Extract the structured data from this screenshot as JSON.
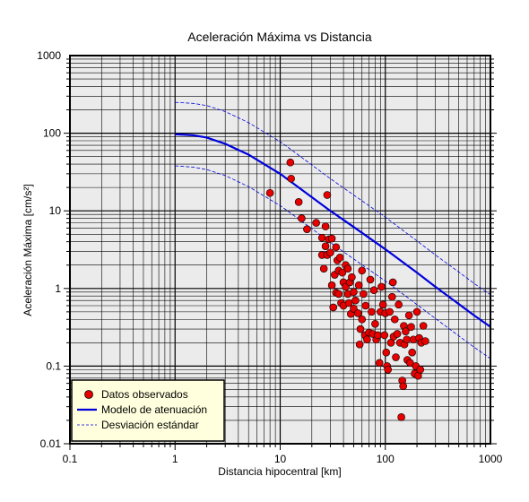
{
  "chart_data": {
    "type": "scatter",
    "title": "Aceleración Máxima vs Distancia",
    "xlabel": "Distancia hipocentral [km]",
    "ylabel": "Aceleración Máxima [cm/s²]",
    "xlim": [
      0.1,
      1000
    ],
    "ylim": [
      0.01,
      1000
    ],
    "xscale": "log",
    "yscale": "log",
    "grid": true,
    "legend_position": "bottom-left",
    "colors": {
      "plot_background": "#ebebeb",
      "grid": "#000000",
      "points": "#e60000",
      "model": "#0000dd",
      "legend_background": "#ffffdd"
    },
    "x_ticks": [
      {
        "value": 0.1,
        "label": "0.1"
      },
      {
        "value": 1,
        "label": "1"
      },
      {
        "value": 10,
        "label": "10"
      },
      {
        "value": 100,
        "label": "100"
      },
      {
        "value": 1000,
        "label": "1000"
      }
    ],
    "y_ticks": [
      {
        "value": 0.01,
        "label": "0.01"
      },
      {
        "value": 0.1,
        "label": "0.1"
      },
      {
        "value": 1,
        "label": "1"
      },
      {
        "value": 10,
        "label": "10"
      },
      {
        "value": 100,
        "label": "100"
      },
      {
        "value": 1000,
        "label": "1000"
      }
    ],
    "series": [
      {
        "name": "Datos observados",
        "type": "scatter",
        "points": [
          [
            8,
            17
          ],
          [
            12.5,
            42
          ],
          [
            12.7,
            26
          ],
          [
            15,
            13
          ],
          [
            16,
            8
          ],
          [
            18,
            5.8
          ],
          [
            22,
            7
          ],
          [
            25,
            4.5
          ],
          [
            25,
            2.7
          ],
          [
            26,
            1.8
          ],
          [
            27,
            6.3
          ],
          [
            27,
            3.5
          ],
          [
            28,
            16
          ],
          [
            28,
            2.7
          ],
          [
            29,
            4.3
          ],
          [
            30,
            2.9
          ],
          [
            31,
            4.4
          ],
          [
            31,
            1.1
          ],
          [
            32,
            0.57
          ],
          [
            33,
            1.5
          ],
          [
            34,
            3.4
          ],
          [
            34,
            0.88
          ],
          [
            35,
            2.3
          ],
          [
            36,
            0.85
          ],
          [
            36,
            1.7
          ],
          [
            37,
            2.5
          ],
          [
            38,
            0.65
          ],
          [
            39,
            1.6
          ],
          [
            40,
            1.2
          ],
          [
            40,
            0.6
          ],
          [
            42,
            2.0
          ],
          [
            42,
            1.05
          ],
          [
            44,
            1.8
          ],
          [
            44,
            0.85
          ],
          [
            45,
            0.65
          ],
          [
            46,
            1.2
          ],
          [
            47,
            0.47
          ],
          [
            48,
            1.4
          ],
          [
            50,
            0.9
          ],
          [
            50,
            0.55
          ],
          [
            52,
            0.7
          ],
          [
            55,
            0.48
          ],
          [
            56,
            1.1
          ],
          [
            57,
            0.19
          ],
          [
            58,
            0.3
          ],
          [
            60,
            1.7
          ],
          [
            60,
            0.4
          ],
          [
            62,
            0.85
          ],
          [
            64,
            0.25
          ],
          [
            65,
            0.6
          ],
          [
            67,
            0.22
          ],
          [
            70,
            0.27
          ],
          [
            72,
            1.3
          ],
          [
            74,
            0.5
          ],
          [
            76,
            0.26
          ],
          [
            78,
            0.95
          ],
          [
            80,
            0.35
          ],
          [
            82,
            0.22
          ],
          [
            85,
            0.25
          ],
          [
            88,
            0.11
          ],
          [
            90,
            0.5
          ],
          [
            92,
            1.05
          ],
          [
            95,
            0.62
          ],
          [
            98,
            0.25
          ],
          [
            100,
            0.48
          ],
          [
            102,
            0.15
          ],
          [
            104,
            0.1
          ],
          [
            106,
            0.09
          ],
          [
            110,
            0.5
          ],
          [
            113,
            0.2
          ],
          [
            116,
            0.78
          ],
          [
            118,
            1.2
          ],
          [
            120,
            0.24
          ],
          [
            123,
            0.4
          ],
          [
            126,
            0.13
          ],
          [
            130,
            0.26
          ],
          [
            134,
            0.62
          ],
          [
            138,
            0.2
          ],
          [
            142,
            0.022
          ],
          [
            145,
            0.065
          ],
          [
            148,
            0.055
          ],
          [
            150,
            0.33
          ],
          [
            152,
            0.19
          ],
          [
            156,
            0.28
          ],
          [
            160,
            0.22
          ],
          [
            162,
            0.12
          ],
          [
            168,
            0.45
          ],
          [
            172,
            0.11
          ],
          [
            176,
            0.32
          ],
          [
            180,
            0.15
          ],
          [
            185,
            0.22
          ],
          [
            190,
            0.08
          ],
          [
            195,
            0.1
          ],
          [
            200,
            0.5
          ],
          [
            205,
            0.075
          ],
          [
            210,
            0.23
          ],
          [
            215,
            0.09
          ],
          [
            220,
            0.2
          ],
          [
            230,
            0.33
          ],
          [
            240,
            0.21
          ]
        ]
      },
      {
        "name": "Modelo de atenuación",
        "type": "line",
        "points": [
          [
            1,
            97
          ],
          [
            1.5,
            94
          ],
          [
            2,
            88
          ],
          [
            3,
            73
          ],
          [
            5,
            53
          ],
          [
            8,
            36
          ],
          [
            10,
            30
          ],
          [
            20,
            15
          ],
          [
            30,
            10
          ],
          [
            50,
            6.2
          ],
          [
            100,
            3.2
          ],
          [
            200,
            1.6
          ],
          [
            300,
            1.05
          ],
          [
            500,
            0.63
          ],
          [
            700,
            0.45
          ],
          [
            1000,
            0.32
          ]
        ]
      },
      {
        "name": "Desviación estándar",
        "type": "dashed-line",
        "points": [
          [
            1,
            250
          ],
          [
            1.5,
            242
          ],
          [
            2,
            227
          ],
          [
            3,
            190
          ],
          [
            5,
            137
          ],
          [
            8,
            93
          ],
          [
            10,
            78
          ],
          [
            20,
            39
          ],
          [
            30,
            26
          ],
          [
            50,
            16
          ],
          [
            100,
            8.3
          ],
          [
            200,
            4.1
          ],
          [
            300,
            2.7
          ],
          [
            500,
            1.63
          ],
          [
            700,
            1.16
          ],
          [
            1000,
            0.83
          ]
        ]
      },
      {
        "type": "dashed-line",
        "points": [
          [
            1,
            38
          ],
          [
            1.5,
            36.5
          ],
          [
            2,
            34
          ],
          [
            3,
            28.5
          ],
          [
            5,
            20.5
          ],
          [
            8,
            14
          ],
          [
            10,
            11.7
          ],
          [
            20,
            5.9
          ],
          [
            30,
            3.9
          ],
          [
            50,
            2.4
          ],
          [
            100,
            1.25
          ],
          [
            200,
            0.62
          ],
          [
            300,
            0.41
          ],
          [
            500,
            0.245
          ],
          [
            700,
            0.175
          ],
          [
            1000,
            0.125
          ]
        ]
      }
    ]
  }
}
